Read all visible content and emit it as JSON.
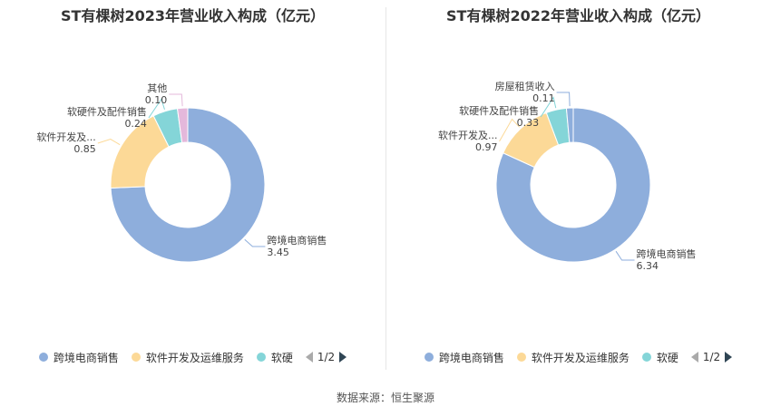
{
  "colors": {
    "跨境电商销售": "#8eaedc",
    "软件开发及运维服务": "#fcd997",
    "软硬件及配件销售": "#84d5d8",
    "其他": "#e4b8db",
    "房屋租赁收入": "#8eaedc"
  },
  "chart_data": [
    {
      "type": "pie",
      "title": "ST有棵树2023年营业收入构成（亿元）",
      "slices": [
        {
          "name": "跨境电商销售",
          "label": "跨境电商销售",
          "value": 3.45,
          "value_text": "3.45",
          "color": "#8eaedc"
        },
        {
          "name": "软件开发及运维服务",
          "label": "软件开发及...",
          "value": 0.85,
          "value_text": "0.85",
          "color": "#fcd997"
        },
        {
          "name": "软硬件及配件销售",
          "label": "软硬件及配件销售",
          "value": 0.24,
          "value_text": "0.24",
          "color": "#84d5d8"
        },
        {
          "name": "其他",
          "label": "其他",
          "value": 0.1,
          "value_text": "0.10",
          "color": "#e4b8db"
        }
      ],
      "legend": [
        "跨境电商销售",
        "软件开发及运维服务",
        "软硬"
      ],
      "legend_colors": [
        "#8eaedc",
        "#fcd997",
        "#84d5d8"
      ],
      "legend_page": "1/2"
    },
    {
      "type": "pie",
      "title": "ST有棵树2022年营业收入构成（亿元）",
      "slices": [
        {
          "name": "跨境电商销售",
          "label": "跨境电商销售",
          "value": 6.34,
          "value_text": "6.34",
          "color": "#8eaedc"
        },
        {
          "name": "软件开发及运维服务",
          "label": "软件开发及...",
          "value": 0.97,
          "value_text": "0.97",
          "color": "#fcd997"
        },
        {
          "name": "软硬件及配件销售",
          "label": "软硬件及配件销售",
          "value": 0.33,
          "value_text": "0.33",
          "color": "#84d5d8"
        },
        {
          "name": "房屋租赁收入",
          "label": "房屋租赁收入",
          "value": 0.11,
          "value_text": "0.11",
          "color": "#8eaedc"
        }
      ],
      "legend": [
        "跨境电商销售",
        "软件开发及运维服务",
        "软硬"
      ],
      "legend_colors": [
        "#8eaedc",
        "#fcd997",
        "#84d5d8"
      ],
      "legend_page": "1/2"
    }
  ],
  "footer": {
    "source": "数据来源：恒生聚源"
  }
}
